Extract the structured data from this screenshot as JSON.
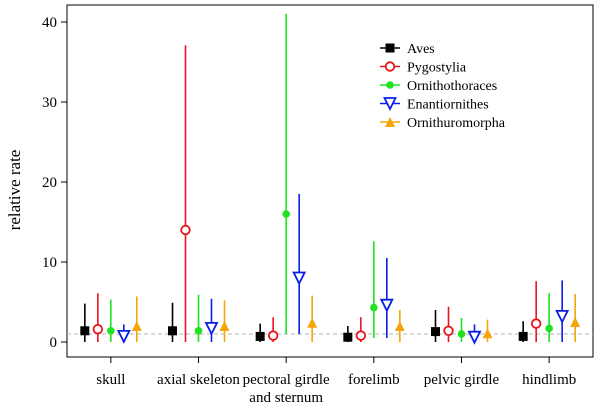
{
  "chart_data": {
    "type": "errorbar",
    "title": "",
    "xlabel": "",
    "ylabel": "relative rate",
    "ylim": [
      0,
      41
    ],
    "yticks": [
      0,
      10,
      20,
      30,
      40
    ],
    "reference_line": 1,
    "categories": [
      "skull",
      "axial skeleton",
      "pectoral girdle and sternum",
      "forelimb",
      "pelvic girdle",
      "hindlimb"
    ],
    "category_labels": [
      [
        "skull"
      ],
      [
        "axial skeleton"
      ],
      [
        "pectoral girdle",
        "and sternum"
      ],
      [
        "forelimb"
      ],
      [
        "pelvic girdle"
      ],
      [
        "hindlimb"
      ]
    ],
    "series": [
      {
        "name": "Aves",
        "color": "#000000",
        "marker": "filled-square",
        "values": [
          1.4,
          1.4,
          0.7,
          0.6,
          1.3,
          0.7
        ],
        "lower": [
          0,
          0,
          0,
          0,
          0,
          0
        ],
        "upper": [
          4.8,
          4.9,
          2.3,
          2.0,
          4.0,
          2.6
        ]
      },
      {
        "name": "Pygostylia",
        "color": "#e8141c",
        "marker": "open-circle",
        "values": [
          1.6,
          14.0,
          0.8,
          0.8,
          1.4,
          2.3
        ],
        "lower": [
          0,
          0,
          0,
          0,
          0,
          0
        ],
        "upper": [
          6.1,
          37.1,
          3.1,
          3.1,
          4.4,
          7.6
        ]
      },
      {
        "name": "Ornithothoraces",
        "color": "#1ee31e",
        "marker": "filled-circle",
        "values": [
          1.4,
          1.4,
          16.0,
          4.3,
          1.0,
          1.7
        ],
        "lower": [
          0,
          0,
          1.0,
          0.5,
          0,
          0
        ],
        "upper": [
          5.3,
          5.9,
          41.0,
          12.6,
          3.0,
          6.1
        ]
      },
      {
        "name": "Enantiornithes",
        "color": "#0a1ee6",
        "marker": "open-triangle-down",
        "values": [
          0.7,
          1.7,
          8.0,
          4.6,
          0.6,
          3.2
        ],
        "lower": [
          0,
          0,
          1.0,
          0.5,
          0,
          0
        ],
        "upper": [
          2.2,
          5.4,
          18.5,
          10.5,
          2.2,
          7.7
        ]
      },
      {
        "name": "Ornithuromorpha",
        "color": "#f5a50a",
        "marker": "filled-triangle-up",
        "values": [
          2.0,
          2.0,
          2.4,
          2.0,
          1.1,
          2.5
        ],
        "lower": [
          0,
          0,
          0,
          0,
          0,
          0
        ],
        "upper": [
          5.7,
          5.2,
          5.8,
          4.0,
          2.8,
          6.0
        ]
      }
    ],
    "legend": {
      "position": "top-right"
    }
  }
}
